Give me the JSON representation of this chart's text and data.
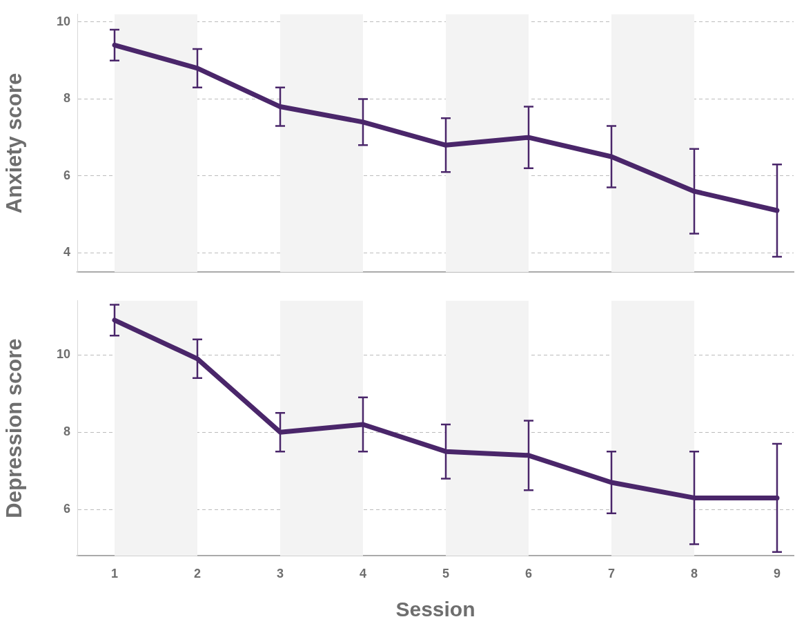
{
  "chart_data": [
    {
      "type": "line",
      "ylabel": "Anxiety score",
      "x": [
        1,
        2,
        3,
        4,
        5,
        6,
        7,
        8,
        9
      ],
      "xlim": [
        0.55,
        9.2
      ],
      "xticks": [
        1,
        2,
        3,
        4,
        5,
        6,
        7,
        8,
        9
      ],
      "ylim": [
        3.5,
        10.2
      ],
      "yticks": [
        4,
        6,
        8,
        10
      ],
      "tick_labels": "y",
      "grid": "y",
      "series": [
        {
          "color": "#4a266a",
          "values": [
            9.4,
            8.8,
            7.8,
            7.4,
            6.8,
            7.0,
            6.5,
            5.6,
            5.1
          ],
          "errors": [
            0.4,
            0.5,
            0.5,
            0.6,
            0.7,
            0.8,
            0.8,
            1.1,
            1.2
          ]
        }
      ],
      "bands": [
        {
          "axis": "x",
          "from": 1,
          "to": 2,
          "color": "#f3f3f3"
        },
        {
          "axis": "x",
          "from": 3,
          "to": 4,
          "color": "#f3f3f3"
        },
        {
          "axis": "x",
          "from": 5,
          "to": 6,
          "color": "#f3f3f3"
        },
        {
          "axis": "x",
          "from": 7,
          "to": 8,
          "color": "#f3f3f3"
        }
      ]
    },
    {
      "type": "line",
      "ylabel": "Depression score",
      "xlabel": "Session",
      "x": [
        1,
        2,
        3,
        4,
        5,
        6,
        7,
        8,
        9
      ],
      "xlim": [
        0.55,
        9.2
      ],
      "xticks": [
        1,
        2,
        3,
        4,
        5,
        6,
        7,
        8,
        9
      ],
      "ylim": [
        4.8,
        11.4
      ],
      "yticks": [
        6,
        8,
        10
      ],
      "grid": "y",
      "series": [
        {
          "color": "#4a266a",
          "values": [
            10.9,
            9.9,
            8.0,
            8.2,
            7.5,
            7.4,
            6.7,
            6.3,
            6.3
          ],
          "errors": [
            0.4,
            0.5,
            0.5,
            0.7,
            0.7,
            0.9,
            0.8,
            1.2,
            1.4
          ]
        }
      ],
      "bands": [
        {
          "axis": "x",
          "from": 1,
          "to": 2,
          "color": "#f3f3f3"
        },
        {
          "axis": "x",
          "from": 3,
          "to": 4,
          "color": "#f3f3f3"
        },
        {
          "axis": "x",
          "from": 5,
          "to": 6,
          "color": "#f3f3f3"
        },
        {
          "axis": "x",
          "from": 7,
          "to": 8,
          "color": "#f3f3f3"
        }
      ]
    }
  ]
}
